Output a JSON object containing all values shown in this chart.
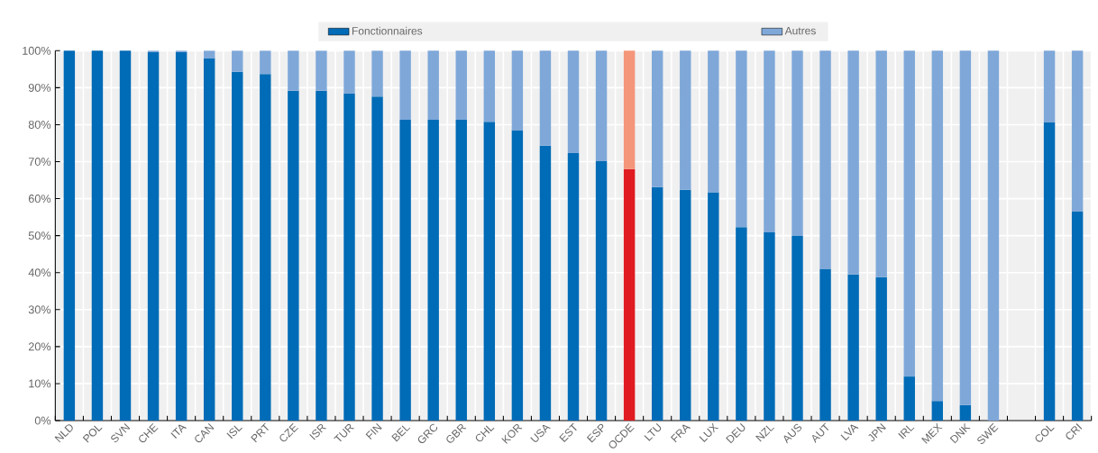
{
  "chart_data": {
    "type": "bar",
    "stacked": true,
    "categories": [
      "NLD",
      "POL",
      "SVN",
      "CHE",
      "ITA",
      "CAN",
      "ISL",
      "PRT",
      "CZE",
      "ISR",
      "TUR",
      "FIN",
      "BEL",
      "GRC",
      "GBR",
      "CHL",
      "KOR",
      "USA",
      "EST",
      "ESP",
      "OCDE",
      "LTU",
      "FRA",
      "LUX",
      "DEU",
      "NZL",
      "AUS",
      "AUT",
      "LVA",
      "JPN",
      "IRL",
      "MEX",
      "DNK",
      "SWE",
      null,
      "COL",
      "CRI"
    ],
    "series": [
      {
        "name": "Fonctionnaires",
        "color": "#006bb6",
        "colors": [
          "#006bb6",
          "#006bb6",
          "#006bb6",
          "#006bb6",
          "#006bb6",
          "#006bb6",
          "#006bb6",
          "#006bb6",
          "#006bb6",
          "#006bb6",
          "#006bb6",
          "#006bb6",
          "#006bb6",
          "#006bb6",
          "#006bb6",
          "#006bb6",
          "#006bb6",
          "#006bb6",
          "#006bb6",
          "#006bb6",
          "#e01b22",
          "#006bb6",
          "#006bb6",
          "#006bb6",
          "#006bb6",
          "#006bb6",
          "#006bb6",
          "#006bb6",
          "#006bb6",
          "#006bb6",
          "#006bb6",
          "#006bb6",
          "#006bb6",
          "#006bb6",
          "#006bb6",
          "#006bb6",
          "#006bb6"
        ],
        "values": [
          100,
          100,
          100,
          99.6,
          99.6,
          98.0,
          94.3,
          93.7,
          89.2,
          89.2,
          88.4,
          87.6,
          81.3,
          81.3,
          81.3,
          80.8,
          78.5,
          74.3,
          72.3,
          70.1,
          68.0,
          63.1,
          62.4,
          61.7,
          52.3,
          50.9,
          49.9,
          41.0,
          39.5,
          38.8,
          11.9,
          5.3,
          4.2,
          0,
          null,
          80.6,
          56.5
        ]
      },
      {
        "name": "Autres",
        "color": "#7fa8d9",
        "colors": [
          "#7fa8d9",
          "#7fa8d9",
          "#7fa8d9",
          "#7fa8d9",
          "#7fa8d9",
          "#7fa8d9",
          "#7fa8d9",
          "#7fa8d9",
          "#7fa8d9",
          "#7fa8d9",
          "#7fa8d9",
          "#7fa8d9",
          "#7fa8d9",
          "#7fa8d9",
          "#7fa8d9",
          "#7fa8d9",
          "#7fa8d9",
          "#7fa8d9",
          "#7fa8d9",
          "#7fa8d9",
          "#f4967a",
          "#7fa8d9",
          "#7fa8d9",
          "#7fa8d9",
          "#7fa8d9",
          "#7fa8d9",
          "#7fa8d9",
          "#7fa8d9",
          "#7fa8d9",
          "#7fa8d9",
          "#7fa8d9",
          "#7fa8d9",
          "#7fa8d9",
          "#7fa8d9",
          "#7fa8d9",
          "#7fa8d9",
          "#7fa8d9"
        ],
        "values": [
          0,
          0,
          0,
          0.4,
          0.4,
          2.0,
          5.7,
          6.3,
          10.8,
          10.8,
          11.6,
          12.4,
          18.7,
          18.7,
          18.7,
          19.2,
          21.5,
          25.7,
          27.7,
          29.9,
          32.0,
          36.9,
          37.6,
          38.3,
          47.7,
          49.1,
          50.1,
          59.0,
          60.5,
          61.2,
          88.1,
          94.7,
          95.8,
          100,
          null,
          19.4,
          43.5
        ]
      }
    ],
    "ylim": [
      0,
      100
    ],
    "yticks": [
      {
        "value": 0,
        "label": "0%"
      },
      {
        "value": 10,
        "label": "10%"
      },
      {
        "value": 20,
        "label": "20%"
      },
      {
        "value": 30,
        "label": "30%"
      },
      {
        "value": 40,
        "label": "40%"
      },
      {
        "value": 50,
        "label": "50%"
      },
      {
        "value": 60,
        "label": "60%"
      },
      {
        "value": 70,
        "label": "70%"
      },
      {
        "value": 80,
        "label": "80%"
      },
      {
        "value": 90,
        "label": "90%"
      },
      {
        "value": 100,
        "label": "100%"
      }
    ],
    "grid": true,
    "legend": "top"
  }
}
